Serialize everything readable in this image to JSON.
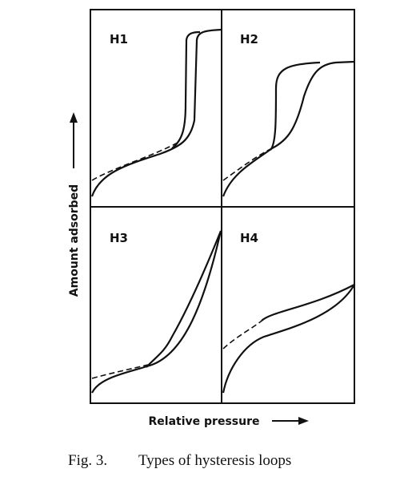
{
  "figure": {
    "panels": [
      {
        "label": "H1"
      },
      {
        "label": "H2"
      },
      {
        "label": "H3"
      },
      {
        "label": "H4"
      }
    ],
    "axes": {
      "y_label": "Amount adsorbed",
      "x_label": "Relative pressure"
    },
    "caption": {
      "number": "Fig. 3.",
      "text": "Types of hysteresis loops"
    }
  }
}
